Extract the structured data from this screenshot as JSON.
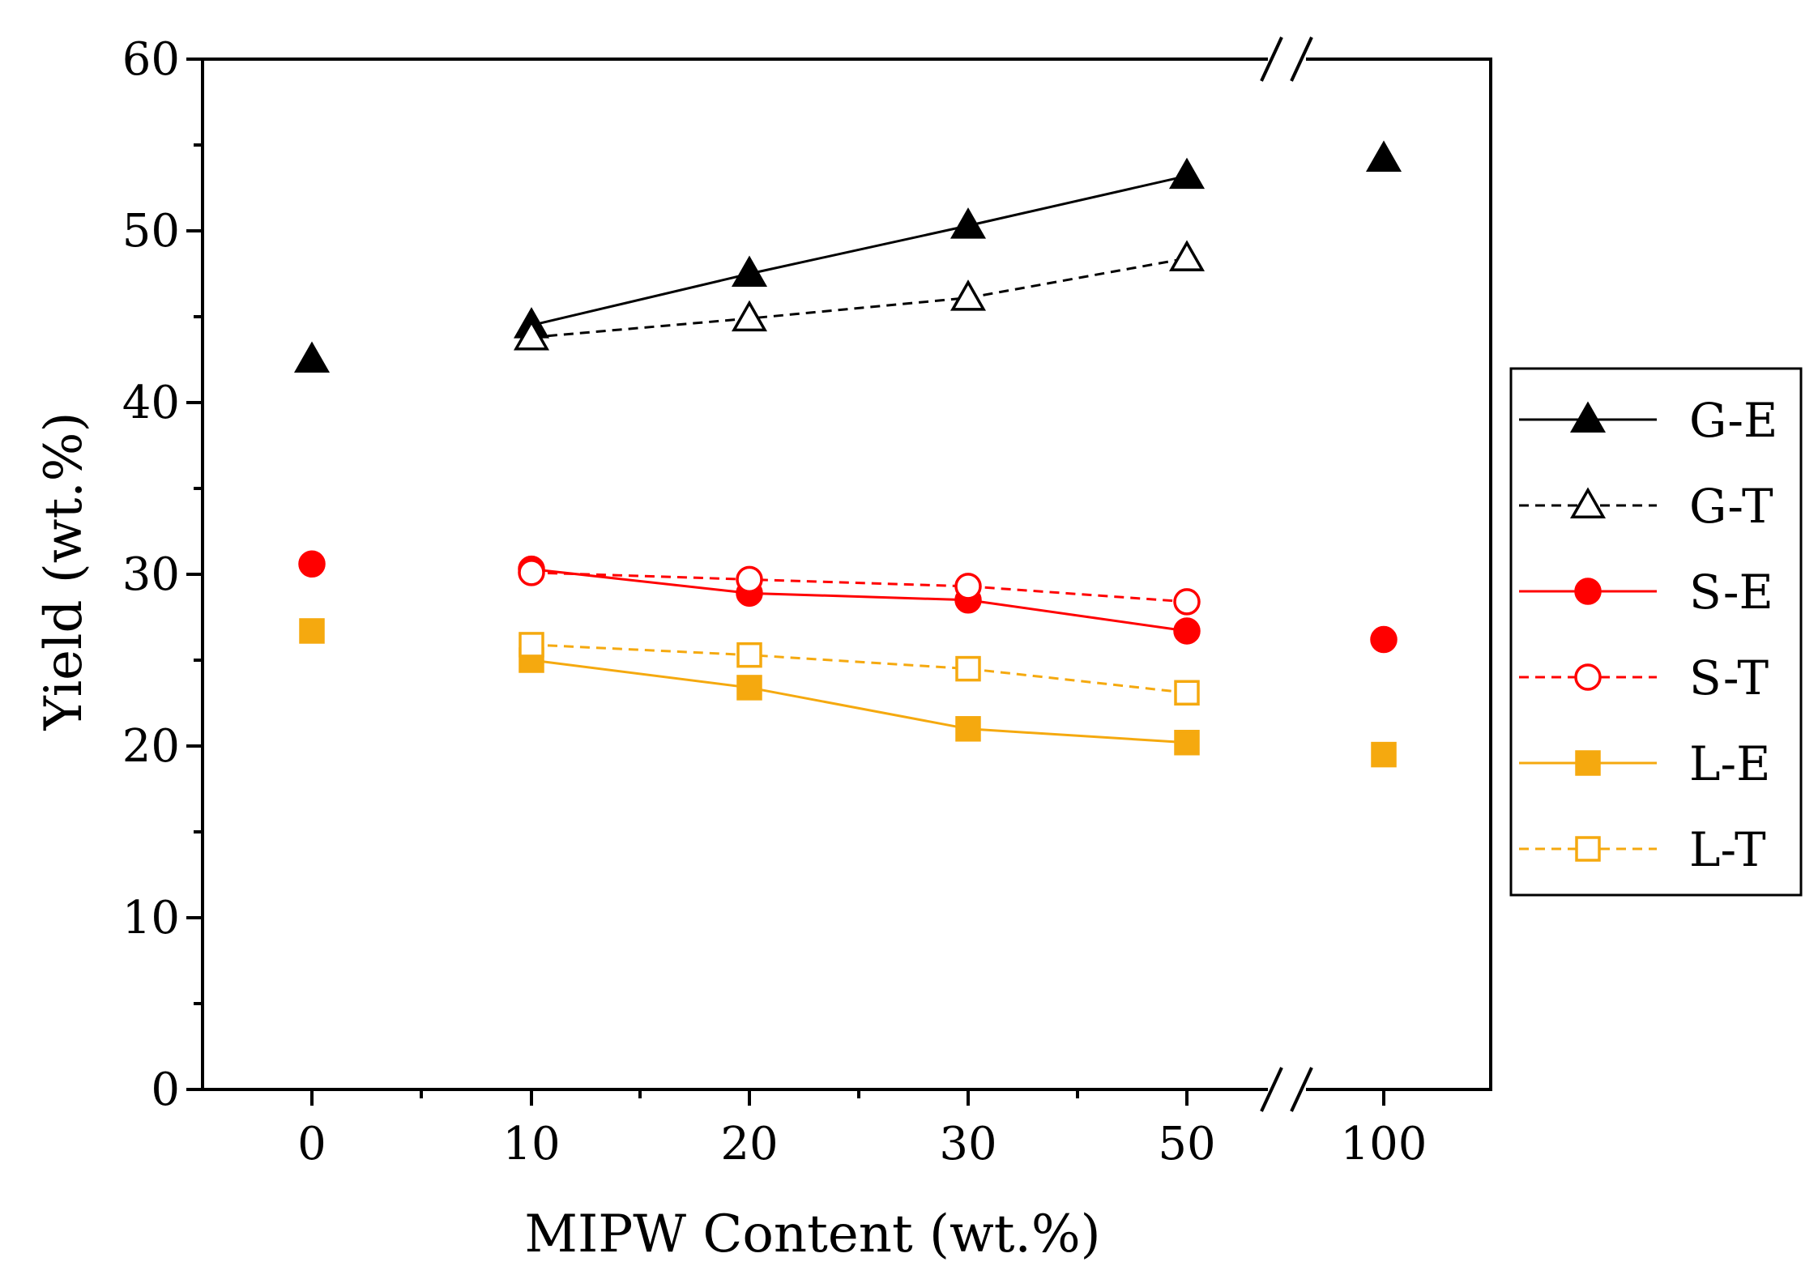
{
  "chart_data": {
    "type": "line",
    "title": "",
    "xlabel": "MIPW Content (wt.%)",
    "ylabel": "Yield (wt.%)",
    "categories": [
      "0",
      "10",
      "20",
      "30",
      "50",
      "100"
    ],
    "ylim": [
      0,
      60
    ],
    "yticks": [
      0,
      10,
      20,
      30,
      40,
      50,
      60
    ],
    "axis_break": "between 50 and 100",
    "grid": false,
    "legend_position": "right",
    "series": [
      {
        "name": "G-E",
        "color": "#000000",
        "marker": "triangle",
        "filled": true,
        "line": "solid",
        "values": [
          42.5,
          44.5,
          47.5,
          50.3,
          53.2,
          54.2
        ],
        "connected": [
          false,
          true,
          true,
          true,
          true,
          false
        ]
      },
      {
        "name": "G-T",
        "color": "#000000",
        "marker": "triangle",
        "filled": false,
        "line": "dashed",
        "values": [
          null,
          43.8,
          44.9,
          46.1,
          48.4,
          null
        ],
        "connected": [
          false,
          true,
          true,
          true,
          true,
          false
        ]
      },
      {
        "name": "S-E",
        "color": "#ff0000",
        "marker": "circle",
        "filled": true,
        "line": "solid",
        "values": [
          30.6,
          30.3,
          28.9,
          28.5,
          26.7,
          26.2
        ],
        "connected": [
          false,
          true,
          true,
          true,
          true,
          false
        ]
      },
      {
        "name": "S-T",
        "color": "#ff0000",
        "marker": "circle",
        "filled": false,
        "line": "dashed",
        "values": [
          null,
          30.1,
          29.7,
          29.3,
          28.4,
          null
        ],
        "connected": [
          false,
          true,
          true,
          true,
          true,
          false
        ]
      },
      {
        "name": "L-E",
        "color": "#f5a90f",
        "marker": "square",
        "filled": true,
        "line": "solid",
        "values": [
          26.7,
          25.0,
          23.4,
          21.0,
          20.2,
          19.5
        ],
        "connected": [
          false,
          true,
          true,
          true,
          true,
          false
        ]
      },
      {
        "name": "L-T",
        "color": "#f5a90f",
        "marker": "square",
        "filled": false,
        "line": "dashed",
        "values": [
          null,
          25.9,
          25.3,
          24.5,
          23.1,
          null
        ],
        "connected": [
          false,
          true,
          true,
          true,
          true,
          false
        ]
      }
    ]
  }
}
